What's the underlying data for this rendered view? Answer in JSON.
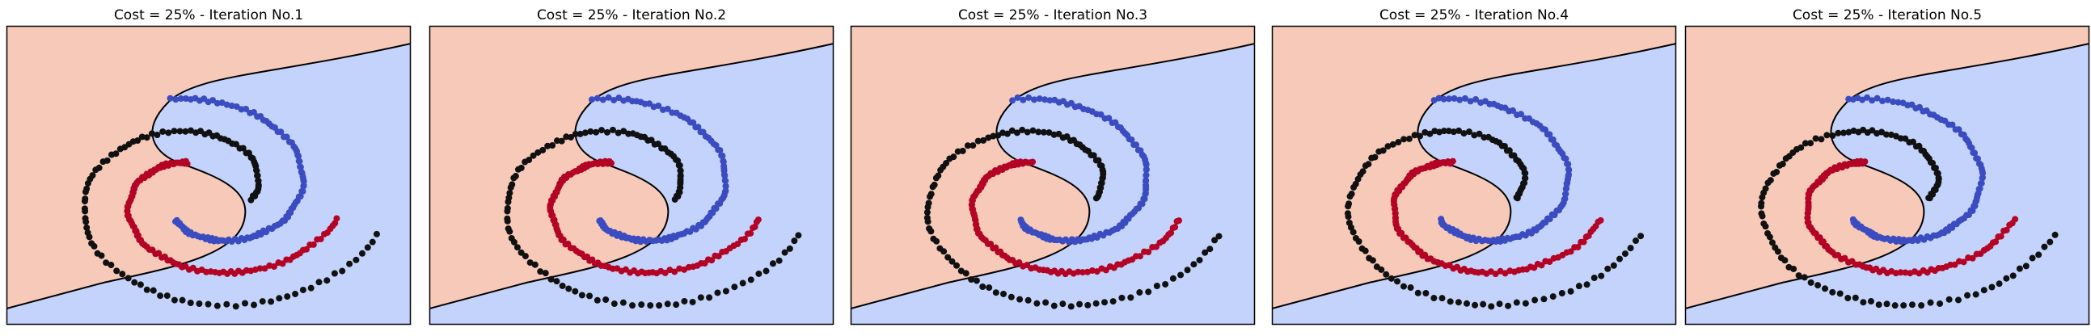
{
  "colors": {
    "red_region": "#f7c9b9",
    "blue_region": "#c3d3fb",
    "red_class": "#b40426",
    "blue_class": "#3b4cc0",
    "black_class": "#111111",
    "boundary": "#000000",
    "frame": "#000000"
  },
  "chart_data": [
    {
      "type": "scatter",
      "title": "Cost = 25% - Iteration No.1",
      "grid": false,
      "xlim": [
        -1,
        1
      ],
      "ylim": [
        -1,
        1
      ],
      "series": [
        {
          "color": "red",
          "spiral": "red",
          "turns": [
            0.1,
            0.58
          ]
        },
        {
          "color": "blue",
          "spiral": "blue",
          "turns": [
            0.1,
            0.58
          ]
        },
        {
          "color": "black",
          "spiral": "black",
          "turns": [
            0.1,
            0.82
          ]
        }
      ]
    },
    {
      "type": "scatter",
      "title": "Cost = 25% - Iteration No.2",
      "grid": false,
      "xlim": [
        -1,
        1
      ],
      "ylim": [
        -1,
        1
      ],
      "series": [
        {
          "color": "red",
          "spiral": "red",
          "turns": [
            0.1,
            0.58
          ]
        },
        {
          "color": "blue",
          "spiral": "blue",
          "turns": [
            0.1,
            0.58
          ]
        },
        {
          "color": "black",
          "spiral": "black",
          "turns": [
            0.1,
            0.82
          ]
        }
      ]
    },
    {
      "type": "scatter",
      "title": "Cost = 25% - Iteration No.3",
      "grid": false,
      "xlim": [
        -1,
        1
      ],
      "ylim": [
        -1,
        1
      ],
      "series": [
        {
          "color": "red",
          "spiral": "red",
          "turns": [
            0.1,
            0.58
          ]
        },
        {
          "color": "blue",
          "spiral": "blue",
          "turns": [
            0.1,
            0.58
          ]
        },
        {
          "color": "black",
          "spiral": "black",
          "turns": [
            0.1,
            0.82
          ]
        }
      ]
    },
    {
      "type": "scatter",
      "title": "Cost = 25% - Iteration No.4",
      "grid": false,
      "xlim": [
        -1,
        1
      ],
      "ylim": [
        -1,
        1
      ],
      "series": [
        {
          "color": "red",
          "spiral": "red",
          "turns": [
            0.1,
            0.58
          ]
        },
        {
          "color": "blue",
          "spiral": "blue",
          "turns": [
            0.1,
            0.58
          ]
        },
        {
          "color": "black",
          "spiral": "black",
          "turns": [
            0.1,
            0.82
          ]
        }
      ]
    },
    {
      "type": "scatter",
      "title": "Cost = 25% - Iteration No.5",
      "grid": false,
      "xlim": [
        -1,
        1
      ],
      "ylim": [
        -1,
        1
      ],
      "series": [
        {
          "color": "red",
          "spiral": "red",
          "turns": [
            0.1,
            0.58
          ]
        },
        {
          "color": "blue",
          "spiral": "blue",
          "turns": [
            0.1,
            0.58
          ]
        },
        {
          "color": "black",
          "spiral": "black",
          "turns": [
            0.1,
            0.82
          ]
        }
      ]
    }
  ]
}
